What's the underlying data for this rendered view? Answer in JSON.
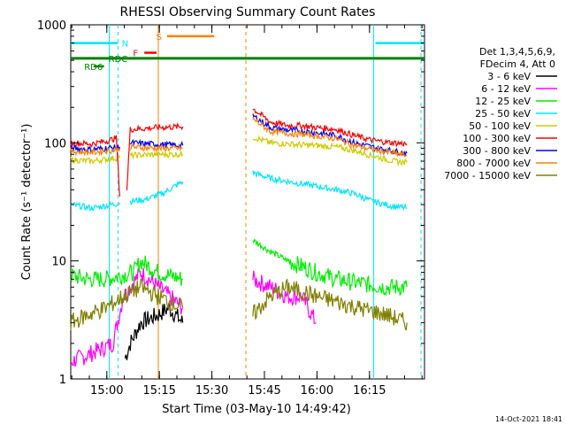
{
  "chart_data": {
    "type": "line",
    "title": "RHESSI Observing Summary Count Rates",
    "xlabel": "Start Time (03-May-10 14:49:42)",
    "ylabel": "Count Rate (s⁻¹ detector⁻¹)",
    "yscale": "log",
    "ylim": [
      1,
      1000
    ],
    "xlim_minutes_after_1449": [
      0,
      101
    ],
    "x_tick_labels": [
      "15:00",
      "15:15",
      "15:30",
      "15:45",
      "16:00",
      "16:15"
    ],
    "y_tick_labels": [
      "1",
      "10",
      "100",
      "1000"
    ],
    "legend": {
      "header": [
        "Det 1,3,4,5,6,9,",
        "FDecim 4, Att 0"
      ],
      "placement": "right",
      "entries": [
        {
          "label": "3 - 6 keV",
          "color": "#000000"
        },
        {
          "label": "6 - 12 keV",
          "color": "#ff00ff"
        },
        {
          "label": "12 - 25 keV",
          "color": "#00ee00"
        },
        {
          "label": "25 - 50 keV",
          "color": "#00e5ff"
        },
        {
          "label": "50 - 100 keV",
          "color": "#cccc00"
        },
        {
          "label": "100 - 300 keV",
          "color": "#ff0000"
        },
        {
          "label": "300 - 800 keV",
          "color": "#0000ff"
        },
        {
          "label": "800 - 7000 keV",
          "color": "#ff8000"
        },
        {
          "label": "7000 - 15000 keV",
          "color": "#808000"
        }
      ]
    },
    "flags": [
      {
        "label": "N",
        "color": "#00e5ff"
      },
      {
        "label": "F",
        "color": "#ff0000"
      },
      {
        "label": "S",
        "color": "#ff8000"
      },
      {
        "label": "RDC",
        "color": "#008000"
      },
      {
        "label": "RD6",
        "color": "#008000"
      }
    ],
    "series": [
      {
        "name": "3 - 6 keV",
        "segments": [
          [
            [
              15.5,
              1.5
            ],
            [
              17,
              2
            ],
            [
              20,
              3
            ],
            [
              25,
              3.5
            ],
            [
              28,
              4
            ],
            [
              32,
              3
            ]
          ]
        ]
      },
      {
        "name": "6 - 12 keV",
        "segments": [
          [
            [
              0,
              1.4
            ],
            [
              5,
              1.6
            ],
            [
              12,
              2
            ],
            [
              15,
              5
            ],
            [
              20,
              8
            ],
            [
              25,
              6
            ],
            [
              32,
              4
            ]
          ],
          [
            [
              52,
              7
            ],
            [
              57,
              6
            ],
            [
              62,
              5
            ],
            [
              66,
              5
            ],
            [
              70,
              3
            ]
          ]
        ]
      },
      {
        "name": "12 - 25 keV",
        "segments": [
          [
            [
              0,
              7.5
            ],
            [
              5,
              7
            ],
            [
              10,
              7
            ],
            [
              14,
              7.5
            ],
            [
              18,
              8
            ],
            [
              20,
              10
            ],
            [
              25,
              8
            ],
            [
              32,
              7
            ]
          ],
          [
            [
              52,
              15
            ],
            [
              57,
              12
            ],
            [
              62,
              10
            ],
            [
              66,
              9
            ],
            [
              70,
              8
            ],
            [
              76,
              7
            ],
            [
              82,
              6.5
            ],
            [
              90,
              6
            ],
            [
              96,
              6
            ]
          ]
        ]
      },
      {
        "name": "25 - 50 keV",
        "segments": [
          [
            [
              0,
              30
            ],
            [
              6,
              28
            ],
            [
              12,
              30
            ],
            [
              14,
              31
            ]
          ],
          [
            [
              17,
              32
            ],
            [
              21,
              33
            ],
            [
              26,
              37
            ],
            [
              32,
              47
            ]
          ],
          [
            [
              52,
              56
            ],
            [
              57,
              50
            ],
            [
              62,
              47
            ],
            [
              66,
              45
            ],
            [
              70,
              43
            ],
            [
              76,
              40
            ],
            [
              81,
              37
            ],
            [
              86,
              32
            ],
            [
              92,
              29
            ],
            [
              96,
              28
            ]
          ]
        ]
      },
      {
        "name": "50 - 100 keV",
        "segments": [
          [
            [
              0,
              72
            ],
            [
              6,
              70
            ],
            [
              14,
              75
            ]
          ],
          [
            [
              17,
              78
            ],
            [
              25,
              80
            ],
            [
              32,
              80
            ]
          ],
          [
            [
              52,
              112
            ],
            [
              57,
              100
            ],
            [
              62,
              98
            ],
            [
              66,
              96
            ],
            [
              70,
              95
            ],
            [
              76,
              92
            ],
            [
              81,
              86
            ],
            [
              86,
              78
            ],
            [
              92,
              70
            ],
            [
              96,
              68
            ]
          ]
        ]
      },
      {
        "name": "100 - 300 keV",
        "segments": [
          [
            [
              0,
              100
            ],
            [
              6,
              98
            ],
            [
              11,
              105
            ],
            [
              13,
              110
            ],
            [
              14,
              35
            ]
          ],
          [
            [
              16,
              40
            ],
            [
              17,
              130
            ],
            [
              25,
              135
            ],
            [
              32,
              137
            ]
          ],
          [
            [
              52,
              195
            ],
            [
              57,
              150
            ],
            [
              62,
              140
            ],
            [
              66,
              140
            ],
            [
              70,
              135
            ],
            [
              76,
              130
            ],
            [
              81,
              115
            ],
            [
              86,
              105
            ],
            [
              92,
              100
            ],
            [
              96,
              98
            ]
          ]
        ]
      },
      {
        "name": "300 - 800 keV",
        "segments": [
          [
            [
              0,
              90
            ],
            [
              6,
              88
            ],
            [
              14,
              92
            ]
          ],
          [
            [
              17,
              100
            ],
            [
              25,
              97
            ],
            [
              32,
              95
            ]
          ],
          [
            [
              52,
              170
            ],
            [
              57,
              135
            ],
            [
              62,
              128
            ],
            [
              66,
              126
            ],
            [
              70,
              122
            ],
            [
              76,
              115
            ],
            [
              81,
              100
            ],
            [
              86,
              92
            ],
            [
              92,
              85
            ],
            [
              96,
              82
            ]
          ]
        ]
      },
      {
        "name": "800 - 7000 keV",
        "segments": [
          [
            [
              0,
              85
            ],
            [
              6,
              83
            ],
            [
              14,
              88
            ]
          ],
          [
            [
              17,
              92
            ],
            [
              25,
              90
            ],
            [
              32,
              90
            ]
          ],
          [
            [
              52,
              160
            ],
            [
              57,
              125
            ],
            [
              62,
              120
            ],
            [
              66,
              118
            ],
            [
              70,
              115
            ],
            [
              76,
              108
            ],
            [
              81,
              95
            ],
            [
              86,
              88
            ],
            [
              92,
              82
            ],
            [
              96,
              78
            ]
          ]
        ]
      },
      {
        "name": "7000 - 15000 keV",
        "segments": [
          [
            [
              0,
              3
            ],
            [
              5,
              3.5
            ],
            [
              10,
              4
            ],
            [
              15,
              5
            ],
            [
              20,
              6
            ],
            [
              25,
              5
            ],
            [
              32,
              4
            ]
          ],
          [
            [
              52,
              3.5
            ],
            [
              57,
              5
            ],
            [
              62,
              6
            ],
            [
              66,
              5.5
            ],
            [
              70,
              5
            ],
            [
              76,
              4.5
            ],
            [
              82,
              4
            ],
            [
              90,
              3.5
            ],
            [
              96,
              3
            ]
          ]
        ]
      }
    ]
  },
  "footer": {
    "timestamp": "14-Oct-2021 18:41"
  }
}
